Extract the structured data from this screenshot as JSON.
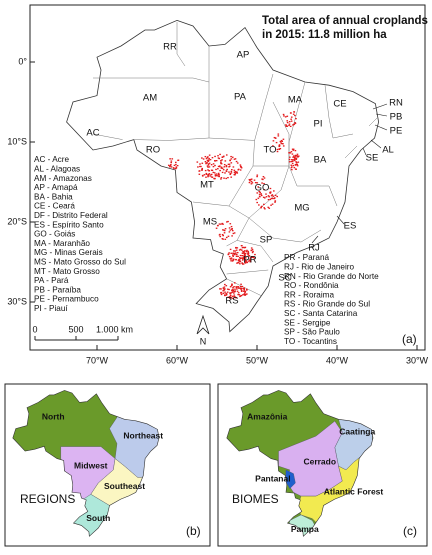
{
  "map": {
    "title": [
      "Total area of annual croplands",
      "in 2015: 11.8 million ha"
    ],
    "states": [
      "RR",
      "AP",
      "AM",
      "PA",
      "MA",
      "CE",
      "PI",
      "AC",
      "RO",
      "TO",
      "BA",
      "MT",
      "GO",
      "MG",
      "MS",
      "SP",
      "PR",
      "SC",
      "RS",
      "RN",
      "PB",
      "PE",
      "AL",
      "SE",
      "ES",
      "RJ"
    ],
    "lat_labels": [
      "0°",
      "10°S",
      "20°S",
      "30°S"
    ],
    "lon_labels": [
      "70°W",
      "60°W",
      "50°W",
      "40°W",
      "30°W"
    ],
    "scale": [
      "0",
      "500",
      "1.000 km"
    ],
    "north": "N",
    "panel": "(a)",
    "legend_left": [
      "AC - Acre",
      "AL - Alagoas",
      "AM - Amazonas",
      "AP - Amapá",
      "BA - Bahia",
      "CE - Ceará",
      "DF - Distrito Federal",
      "ES - Espírito Santo",
      "GO - Goiás",
      "MA - Maranhão",
      "MG - Minas Gerais",
      "MS - Mato Grosso do Sul",
      "MT - Mato Grosso",
      "PA - Pará",
      "PB - Paraíba",
      "PE - Pernambuco",
      "PI - Piauí"
    ],
    "legend_right": [
      "PR - Paraná",
      "RJ - Rio de Janeiro",
      "RN - Rio Grande do Norte",
      "RO - Rondônia",
      "RR - Roraima",
      "RS - Rio Grande do Sul",
      "SC - Santa Catarina",
      "SE - Sergipe",
      "SP - São Paulo",
      "TO - Tocantins"
    ]
  },
  "regions": {
    "labels": [
      "North",
      "Northeast",
      "Midwest",
      "Southeast",
      "South"
    ],
    "title": "REGIONS",
    "panel": "(b)"
  },
  "biomes": {
    "labels": [
      "Amazônia",
      "Caatinga",
      "Cerrado",
      "Pantanal",
      "Atlantic Forest",
      "Pampa"
    ],
    "title": "BIOMES",
    "panel": "(c)"
  }
}
